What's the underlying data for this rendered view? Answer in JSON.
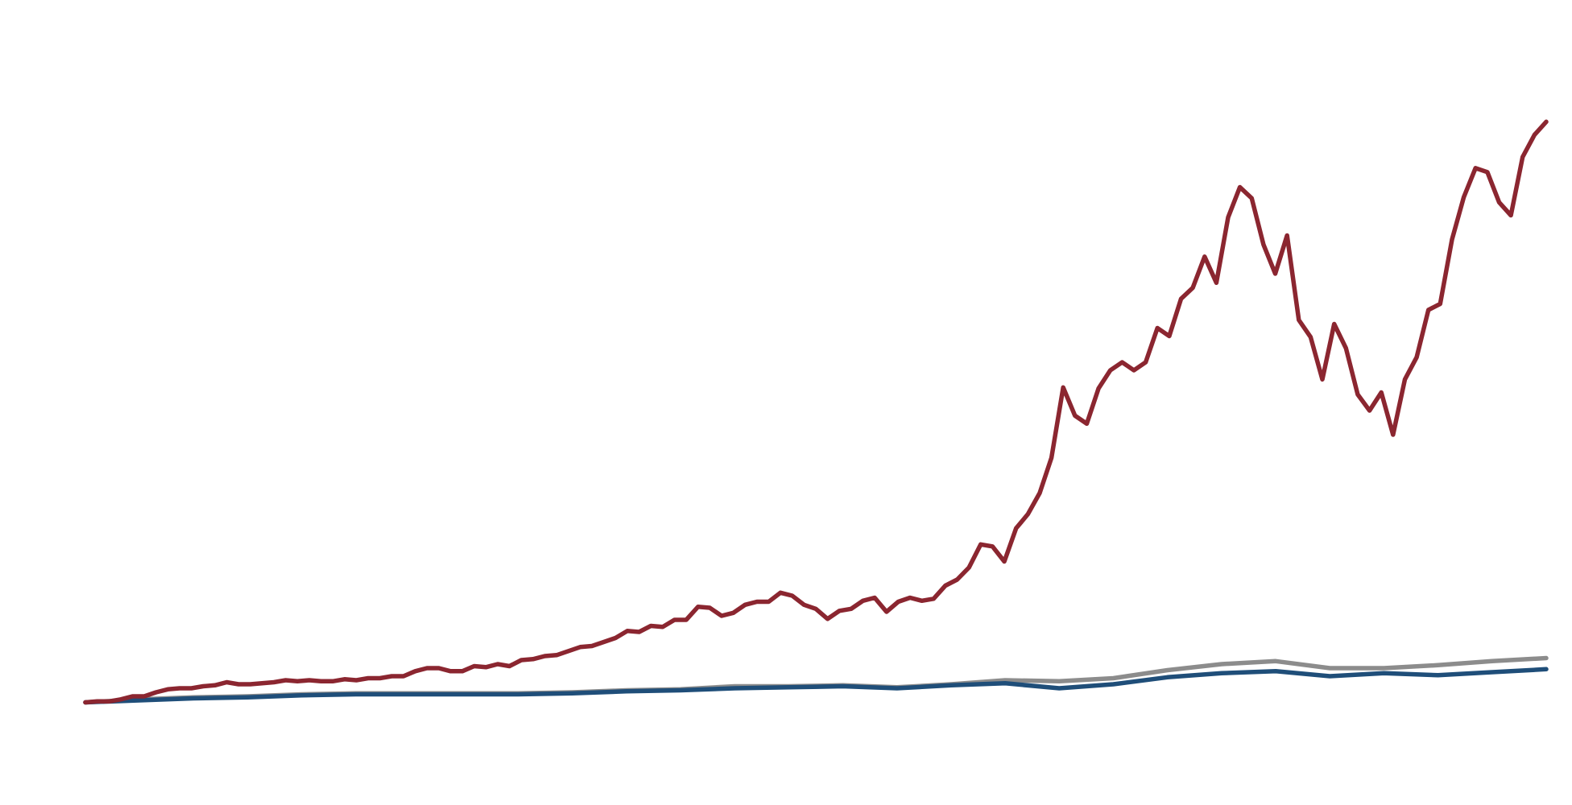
{
  "chart_data": {
    "type": "line",
    "ylim": [
      0,
      700
    ],
    "series": [
      {
        "color": "#8c8c8c",
        "values": [
          2,
          5,
          7,
          8,
          10,
          11,
          11,
          11,
          11,
          12,
          14,
          15,
          18,
          18,
          19,
          17,
          20,
          24,
          23,
          26,
          34,
          40,
          43,
          36,
          36,
          39,
          43,
          46
        ]
      },
      {
        "color": "#1f4e79",
        "values": [
          2,
          4,
          6,
          7,
          9,
          10,
          10,
          10,
          10,
          11,
          13,
          14,
          16,
          17,
          18,
          16,
          19,
          21,
          16,
          20,
          27,
          31,
          33,
          28,
          31,
          29,
          32,
          35
        ]
      },
      {
        "color": "#8b2630",
        "values": [
          2,
          3,
          3,
          5,
          8,
          8,
          12,
          15,
          16,
          16,
          18,
          19,
          22,
          20,
          20,
          21,
          22,
          24,
          23,
          24,
          23,
          23,
          25,
          24,
          26,
          26,
          28,
          28,
          33,
          36,
          36,
          33,
          33,
          38,
          37,
          40,
          38,
          44,
          45,
          48,
          49,
          53,
          57,
          58,
          62,
          66,
          73,
          72,
          78,
          77,
          84,
          84,
          97,
          96,
          88,
          91,
          99,
          102,
          102,
          111,
          108,
          99,
          95,
          85,
          93,
          95,
          103,
          106,
          92,
          102,
          106,
          103,
          105,
          118,
          124,
          136,
          159,
          157,
          142,
          175,
          189,
          210,
          245,
          315,
          287,
          279,
          314,
          332,
          340,
          332,
          340,
          374,
          366,
          403,
          414,
          445,
          419,
          484,
          514,
          503,
          457,
          428,
          466,
          382,
          365,
          323,
          378,
          354,
          308,
          292,
          310,
          268,
          323,
          345,
          392,
          398,
          462,
          504,
          533,
          529,
          499,
          486,
          544,
          566,
          579
        ]
      }
    ]
  }
}
